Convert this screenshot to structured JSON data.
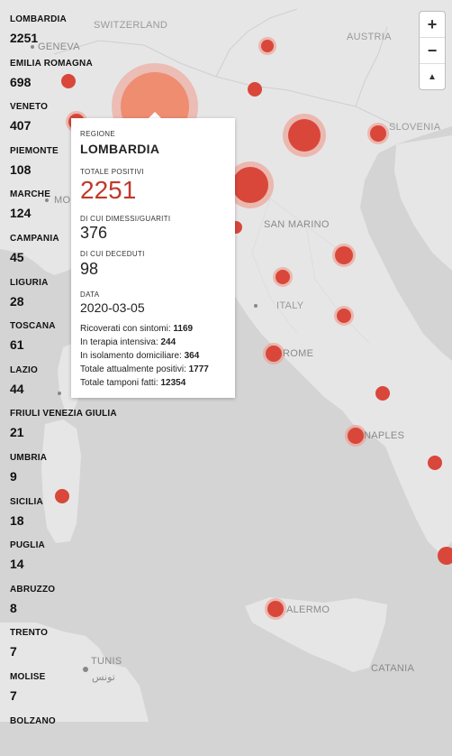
{
  "regions": [
    {
      "name": "LOMBARDIA",
      "count": "2251"
    },
    {
      "name": "EMILIA ROMAGNA",
      "count": "698"
    },
    {
      "name": "VENETO",
      "count": "407"
    },
    {
      "name": "PIEMONTE",
      "count": "108"
    },
    {
      "name": "MARCHE",
      "count": "124"
    },
    {
      "name": "CAMPANIA",
      "count": "45"
    },
    {
      "name": "LIGURIA",
      "count": "28"
    },
    {
      "name": "TOSCANA",
      "count": "61"
    },
    {
      "name": "LAZIO",
      "count": "44"
    },
    {
      "name": "FRIULI VENEZIA GIULIA",
      "count": "21"
    },
    {
      "name": "UMBRIA",
      "count": "9"
    },
    {
      "name": "SICILIA",
      "count": "18"
    },
    {
      "name": "PUGLIA",
      "count": "14"
    },
    {
      "name": "ABRUZZO",
      "count": "8"
    },
    {
      "name": "TRENTO",
      "count": "7"
    },
    {
      "name": "MOLISE",
      "count": "7"
    },
    {
      "name": "BOLZANO",
      "count": ""
    }
  ],
  "popup": {
    "regione_label": "REGIONE",
    "regione": "LOMBARDIA",
    "positivi_label": "TOTALE POSITIVI",
    "positivi": "2251",
    "guariti_label": "DI CUI DIMESSI/GUARITI",
    "guariti": "376",
    "deceduti_label": "DI CUI DECEDUTI",
    "deceduti": "98",
    "data_label": "DATA",
    "data": "2020-03-05",
    "details": [
      {
        "label": "Ricoverati con sintomi:",
        "value": "1169"
      },
      {
        "label": "In terapia intensiva:",
        "value": "244"
      },
      {
        "label": "In isolamento domiciliare:",
        "value": "364"
      },
      {
        "label": "Totale attualmente positivi:",
        "value": "1777"
      },
      {
        "label": "Totale tamponi fatti:",
        "value": "12354"
      }
    ]
  },
  "map_labels": {
    "switzerland": "SWITZERLAND",
    "austria": "AUSTRIA",
    "geneva": "GENEVA",
    "slovenia": "SLOVENIA",
    "san_marino": "SAN MARINO",
    "italy": "ITALY",
    "rome": "ROME",
    "naples": "NAPLES",
    "palermo": "ALERMO",
    "tunis": "TUNIS",
    "tunis_ar": "تونس",
    "catania": "CATANIA",
    "monaco": "MO"
  },
  "zoom": {
    "in": "+",
    "out": "−",
    "compass": "▲"
  },
  "colors": {
    "land": "#e6e6e6",
    "sea": "#d4d4d4",
    "bubble": "#d9473a",
    "bubble_halo": "#ef9a8c",
    "lombardia_bubble": "#ef8a6e",
    "popup_value": "#c0392b"
  }
}
